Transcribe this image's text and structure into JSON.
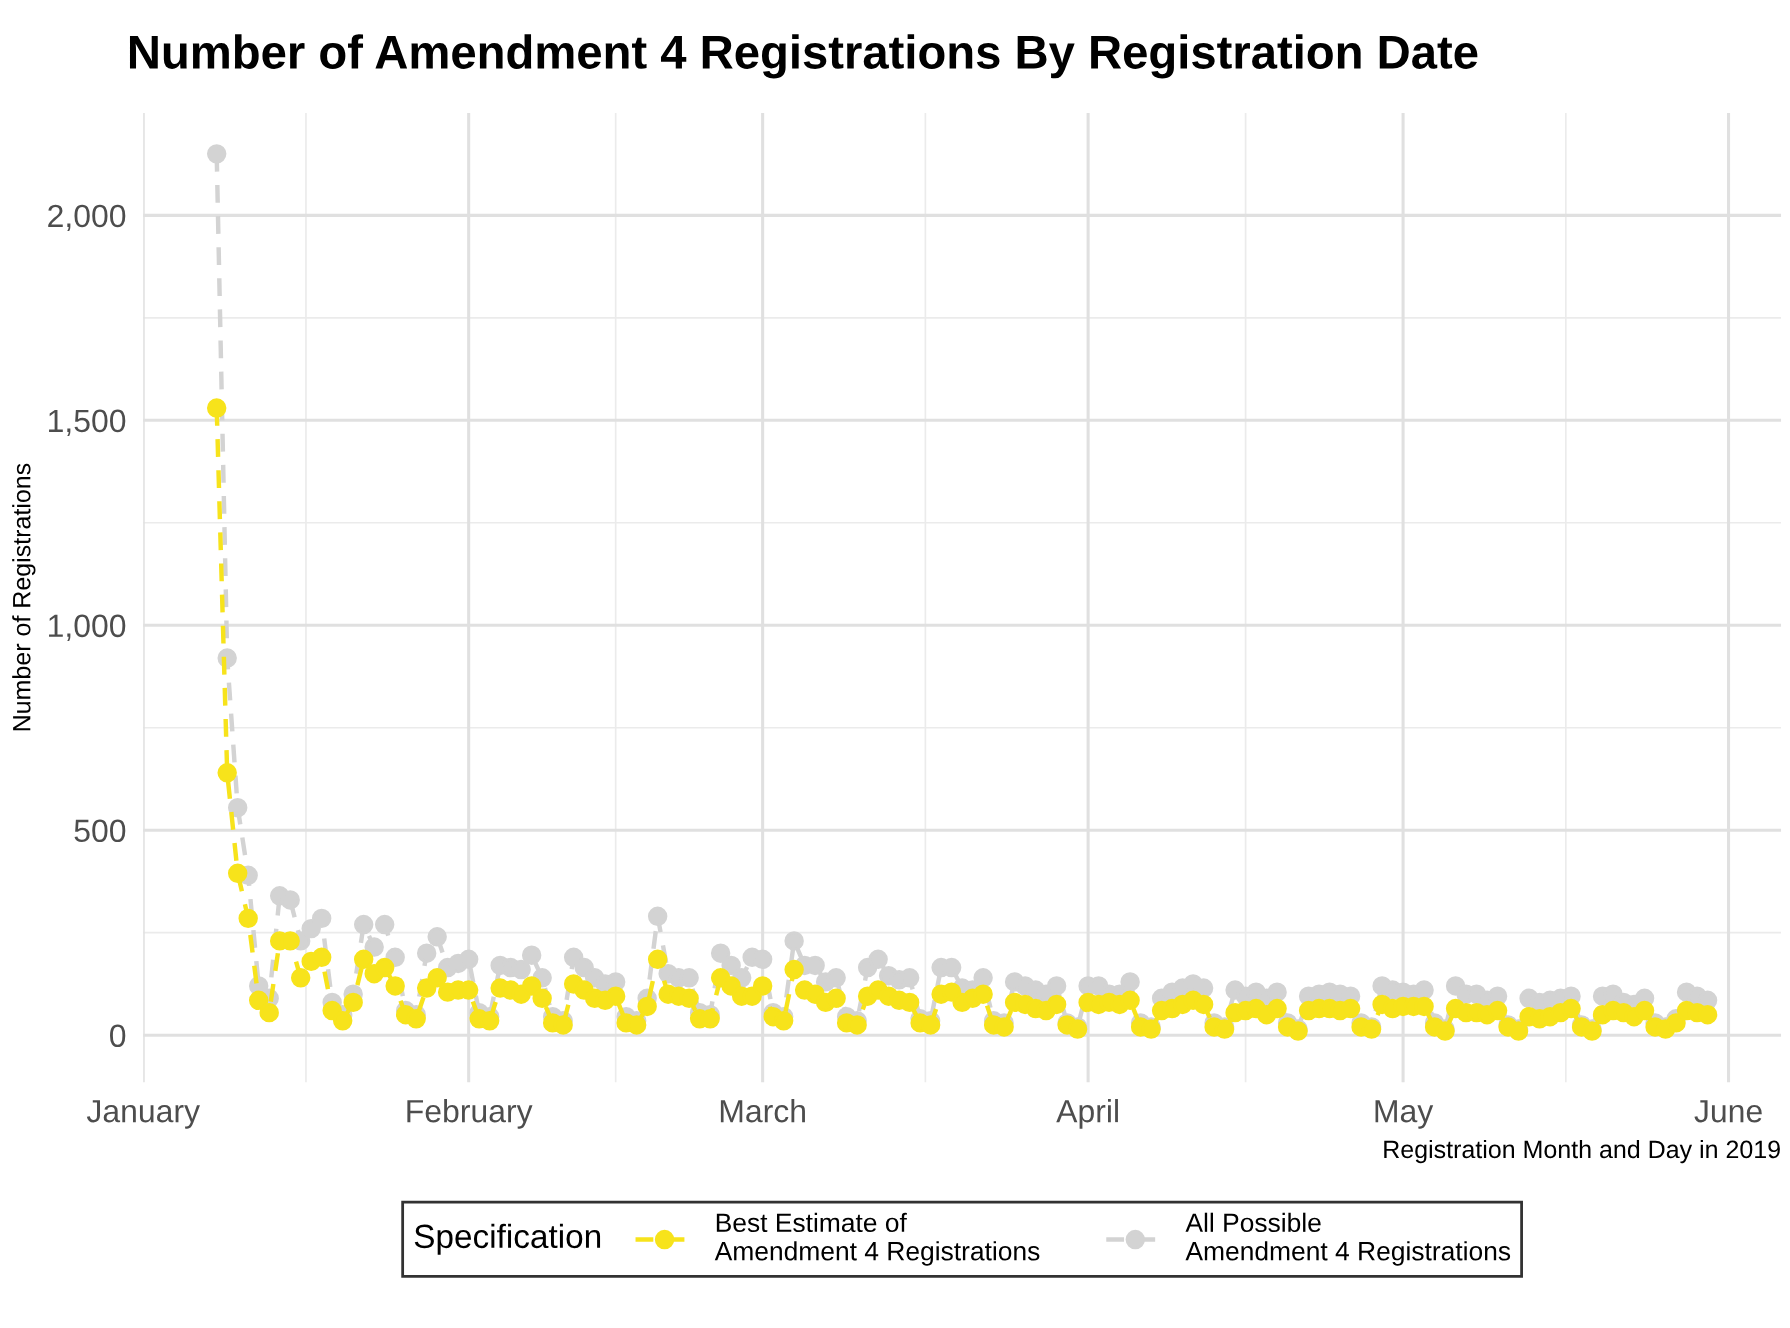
{
  "chart_data": {
    "type": "line",
    "title": "Number of Amendment 4 Registrations By Registration Date",
    "xlabel": "Registration Month and Day in 2019",
    "ylabel": "Number of Registrations",
    "legend_title": "Specification",
    "legend": "bottom",
    "grid": true,
    "marker": "circle",
    "line_style": "dashed",
    "x": [
      "2019-01-08",
      "2019-01-09",
      "2019-01-10",
      "2019-01-11",
      "2019-01-12",
      "2019-01-13",
      "2019-01-14",
      "2019-01-15",
      "2019-01-16",
      "2019-01-17",
      "2019-01-18",
      "2019-01-19",
      "2019-01-20",
      "2019-01-21",
      "2019-01-22",
      "2019-01-23",
      "2019-01-24",
      "2019-01-25",
      "2019-01-26",
      "2019-01-27",
      "2019-01-28",
      "2019-01-29",
      "2019-01-30",
      "2019-01-31",
      "2019-02-01",
      "2019-02-02",
      "2019-02-03",
      "2019-02-04",
      "2019-02-05",
      "2019-02-06",
      "2019-02-07",
      "2019-02-08",
      "2019-02-09",
      "2019-02-10",
      "2019-02-11",
      "2019-02-12",
      "2019-02-13",
      "2019-02-14",
      "2019-02-15",
      "2019-02-16",
      "2019-02-17",
      "2019-02-18",
      "2019-02-19",
      "2019-02-20",
      "2019-02-21",
      "2019-02-22",
      "2019-02-23",
      "2019-02-24",
      "2019-02-25",
      "2019-02-26",
      "2019-02-27",
      "2019-02-28",
      "2019-03-01",
      "2019-03-02",
      "2019-03-03",
      "2019-03-04",
      "2019-03-05",
      "2019-03-06",
      "2019-03-07",
      "2019-03-08",
      "2019-03-09",
      "2019-03-10",
      "2019-03-11",
      "2019-03-12",
      "2019-03-13",
      "2019-03-14",
      "2019-03-15",
      "2019-03-16",
      "2019-03-17",
      "2019-03-18",
      "2019-03-19",
      "2019-03-20",
      "2019-03-21",
      "2019-03-22",
      "2019-03-23",
      "2019-03-24",
      "2019-03-25",
      "2019-03-26",
      "2019-03-27",
      "2019-03-28",
      "2019-03-29",
      "2019-03-30",
      "2019-03-31",
      "2019-04-01",
      "2019-04-02",
      "2019-04-03",
      "2019-04-04",
      "2019-04-05",
      "2019-04-06",
      "2019-04-07",
      "2019-04-08",
      "2019-04-09",
      "2019-04-10",
      "2019-04-11",
      "2019-04-12",
      "2019-04-13",
      "2019-04-14",
      "2019-04-15",
      "2019-04-16",
      "2019-04-17",
      "2019-04-18",
      "2019-04-19",
      "2019-04-20",
      "2019-04-21",
      "2019-04-22",
      "2019-04-23",
      "2019-04-24",
      "2019-04-25",
      "2019-04-26",
      "2019-04-27",
      "2019-04-28",
      "2019-04-29",
      "2019-04-30",
      "2019-05-01",
      "2019-05-02",
      "2019-05-03",
      "2019-05-04",
      "2019-05-05",
      "2019-05-06",
      "2019-05-07",
      "2019-05-08",
      "2019-05-09",
      "2019-05-10",
      "2019-05-11",
      "2019-05-12",
      "2019-05-13",
      "2019-05-14",
      "2019-05-15",
      "2019-05-16",
      "2019-05-17",
      "2019-05-18",
      "2019-05-19",
      "2019-05-20",
      "2019-05-21",
      "2019-05-22",
      "2019-05-23",
      "2019-05-24",
      "2019-05-25",
      "2019-05-26",
      "2019-05-27",
      "2019-05-28",
      "2019-05-29",
      "2019-05-30"
    ],
    "xlim": [
      "2019-01-01",
      "2019-06-06"
    ],
    "xticks": [
      {
        "value": "2019-01-01",
        "label": "January"
      },
      {
        "value": "2019-02-01",
        "label": "February"
      },
      {
        "value": "2019-03-01",
        "label": "March"
      },
      {
        "value": "2019-04-01",
        "label": "April"
      },
      {
        "value": "2019-05-01",
        "label": "May"
      },
      {
        "value": "2019-06-01",
        "label": "June"
      }
    ],
    "ylim": [
      -115,
      2250
    ],
    "yticks": [
      0,
      500,
      {
        "value": 1000,
        "label": "1,000"
      },
      {
        "value": 1500,
        "label": "1,500"
      },
      {
        "value": 2000,
        "label": "2,000"
      }
    ],
    "series": [
      {
        "name": "Best Estimate of\nAmendment 4 Registrations",
        "color": "#f7e31b",
        "values": [
          1530,
          640,
          395,
          285,
          85,
          55,
          230,
          230,
          140,
          180,
          190,
          60,
          35,
          80,
          185,
          150,
          165,
          120,
          50,
          40,
          115,
          140,
          105,
          110,
          110,
          40,
          35,
          115,
          110,
          100,
          120,
          90,
          30,
          25,
          125,
          110,
          90,
          85,
          95,
          30,
          25,
          70,
          185,
          100,
          95,
          90,
          40,
          40,
          140,
          120,
          95,
          95,
          120,
          45,
          35,
          160,
          110,
          100,
          80,
          90,
          30,
          25,
          95,
          110,
          95,
          85,
          80,
          30,
          25,
          100,
          105,
          80,
          90,
          100,
          25,
          20,
          80,
          75,
          65,
          60,
          75,
          25,
          15,
          80,
          75,
          80,
          75,
          85,
          20,
          15,
          60,
          65,
          75,
          85,
          75,
          20,
          15,
          55,
          60,
          65,
          50,
          65,
          20,
          10,
          60,
          65,
          65,
          60,
          65,
          20,
          15,
          75,
          65,
          70,
          70,
          70,
          20,
          10,
          65,
          55,
          55,
          50,
          60,
          20,
          10,
          45,
          40,
          45,
          55,
          65,
          20,
          10,
          50,
          60,
          55,
          45,
          60,
          20,
          15,
          30,
          60,
          55,
          50
        ]
      },
      {
        "name": "All Possible\nAmendment 4 Registrations",
        "color": "#d3d3d3",
        "values": [
          2150,
          920,
          555,
          390,
          120,
          90,
          340,
          330,
          230,
          260,
          285,
          80,
          50,
          100,
          270,
          215,
          270,
          190,
          60,
          50,
          200,
          240,
          165,
          175,
          185,
          55,
          45,
          170,
          165,
          160,
          195,
          140,
          45,
          35,
          190,
          165,
          140,
          125,
          130,
          45,
          35,
          90,
          290,
          150,
          140,
          140,
          55,
          50,
          200,
          170,
          140,
          190,
          185,
          55,
          45,
          230,
          170,
          170,
          130,
          140,
          45,
          35,
          165,
          185,
          145,
          135,
          140,
          40,
          35,
          165,
          165,
          115,
          110,
          140,
          35,
          30,
          130,
          120,
          110,
          100,
          120,
          30,
          20,
          120,
          120,
          100,
          100,
          130,
          30,
          20,
          90,
          105,
          115,
          125,
          115,
          30,
          20,
          110,
          95,
          105,
          90,
          105,
          30,
          15,
          95,
          100,
          105,
          100,
          95,
          30,
          20,
          120,
          110,
          105,
          100,
          110,
          30,
          15,
          120,
          100,
          100,
          85,
          95,
          25,
          15,
          90,
          80,
          85,
          90,
          95,
          25,
          15,
          95,
          100,
          80,
          75,
          90,
          30,
          20,
          40,
          105,
          95,
          85
        ]
      }
    ]
  }
}
